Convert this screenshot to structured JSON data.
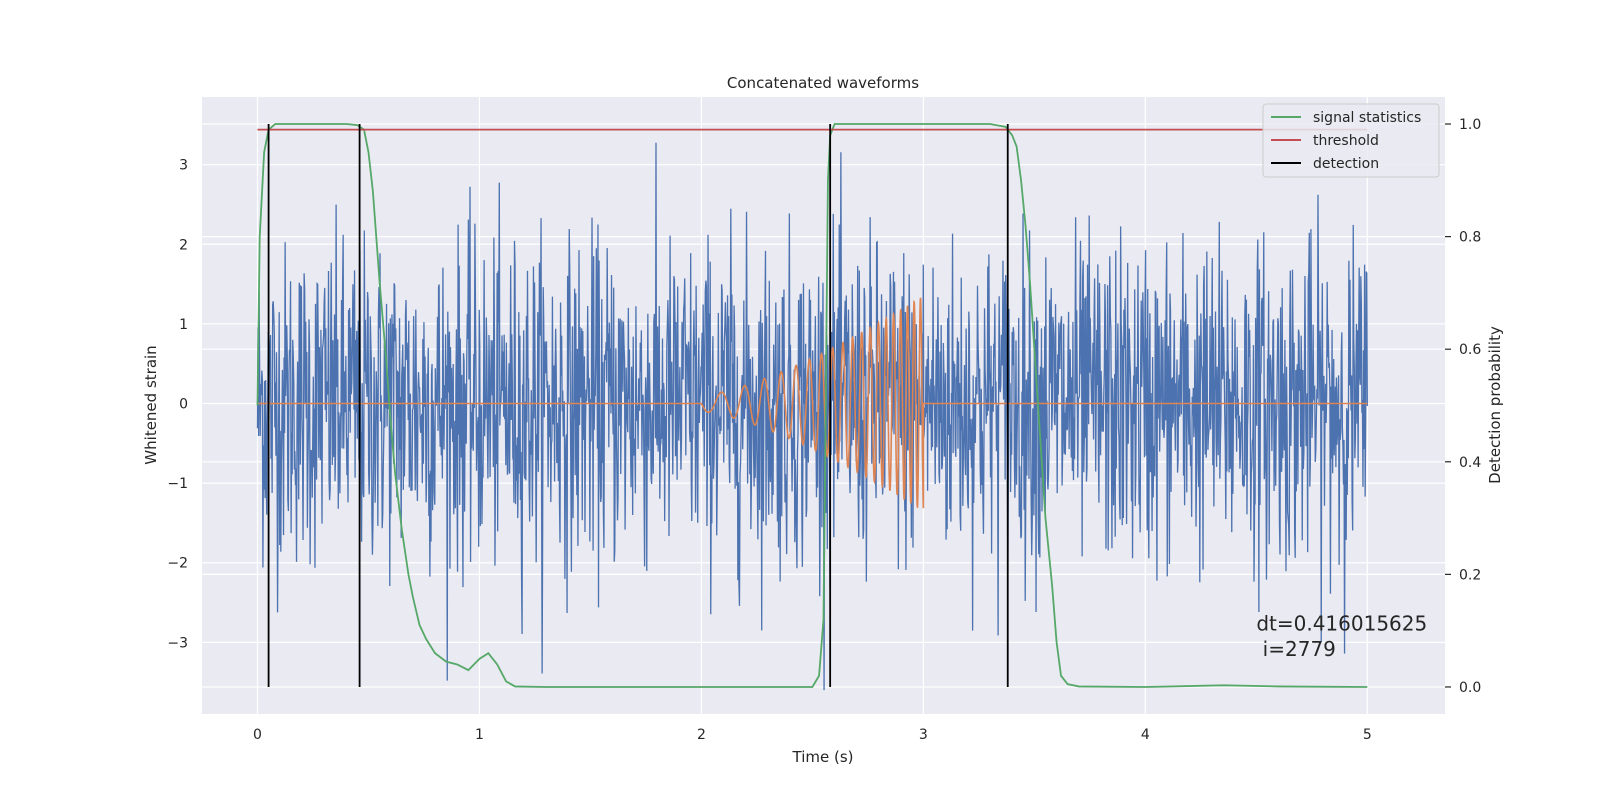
{
  "chart_data": {
    "type": "line",
    "title": "Concatenated waveforms",
    "xlabel": "Time (s)",
    "ylabel": "Whitened strain",
    "y2label": "Detection probability",
    "xlim": [
      -0.25,
      5.35
    ],
    "ylim": [
      -3.9,
      3.85
    ],
    "y2lim": [
      -0.048,
      1.048
    ],
    "xticks": [
      0,
      1,
      2,
      3,
      4,
      5
    ],
    "yticks": [
      -3,
      -2,
      -1,
      0,
      1,
      2,
      3
    ],
    "y2ticks": [
      0.0,
      0.2,
      0.4,
      0.6,
      0.8,
      1.0
    ],
    "grid": true,
    "legend_position": "top-right",
    "series": [
      {
        "name": "",
        "axis": "left",
        "color": "#4c72b0",
        "kind": "noise",
        "x_range": [
          0,
          5
        ],
        "samples": 2048,
        "std": 1.0,
        "y_range": [
          -3.6,
          3.5
        ]
      },
      {
        "name": "",
        "axis": "left",
        "color": "#dd8452",
        "kind": "chirp",
        "x_range": [
          0,
          5
        ],
        "chirp_window": [
          2.0,
          3.0
        ],
        "amplitude_start": 0.1,
        "amplitude_end": 1.35,
        "frequency_start": 8,
        "frequency_end": 36
      },
      {
        "name": "signal statistics",
        "axis": "right",
        "color": "#55a868",
        "points": [
          [
            0,
            0.5
          ],
          [
            0.01,
            0.8
          ],
          [
            0.03,
            0.95
          ],
          [
            0.05,
            0.99
          ],
          [
            0.08,
            1.0
          ],
          [
            0.2,
            1.0
          ],
          [
            0.4,
            1.0
          ],
          [
            0.45,
            0.998
          ],
          [
            0.48,
            0.99
          ],
          [
            0.5,
            0.95
          ],
          [
            0.52,
            0.88
          ],
          [
            0.55,
            0.72
          ],
          [
            0.58,
            0.58
          ],
          [
            0.6,
            0.47
          ],
          [
            0.62,
            0.38
          ],
          [
            0.65,
            0.28
          ],
          [
            0.68,
            0.2
          ],
          [
            0.7,
            0.16
          ],
          [
            0.73,
            0.11
          ],
          [
            0.76,
            0.085
          ],
          [
            0.8,
            0.06
          ],
          [
            0.85,
            0.045
          ],
          [
            0.9,
            0.04
          ],
          [
            0.95,
            0.03
          ],
          [
            1.0,
            0.05
          ],
          [
            1.04,
            0.06
          ],
          [
            1.08,
            0.04
          ],
          [
            1.12,
            0.01
          ],
          [
            1.16,
            0.001
          ],
          [
            1.3,
            0.0
          ],
          [
            1.8,
            0.0
          ],
          [
            2.4,
            0.0
          ],
          [
            2.5,
            0.0
          ],
          [
            2.53,
            0.02
          ],
          [
            2.55,
            0.12
          ],
          [
            2.56,
            0.5
          ],
          [
            2.57,
            0.9
          ],
          [
            2.58,
            0.98
          ],
          [
            2.6,
            1.0
          ],
          [
            3.0,
            1.0
          ],
          [
            3.3,
            1.0
          ],
          [
            3.37,
            0.995
          ],
          [
            3.4,
            0.98
          ],
          [
            3.42,
            0.96
          ],
          [
            3.44,
            0.9
          ],
          [
            3.46,
            0.82
          ],
          [
            3.48,
            0.72
          ],
          [
            3.5,
            0.6
          ],
          [
            3.52,
            0.48
          ],
          [
            3.55,
            0.3
          ],
          [
            3.58,
            0.18
          ],
          [
            3.6,
            0.08
          ],
          [
            3.62,
            0.02
          ],
          [
            3.65,
            0.005
          ],
          [
            3.7,
            0.001
          ],
          [
            4.0,
            0.0
          ],
          [
            4.35,
            0.003
          ],
          [
            4.6,
            0.001
          ],
          [
            5.0,
            0.0
          ]
        ]
      },
      {
        "name": "threshold",
        "axis": "right",
        "color": "#c44e52",
        "points": [
          [
            0,
            0.99
          ],
          [
            5,
            0.99
          ]
        ]
      },
      {
        "name": "detection",
        "axis": "right",
        "color": "#000000",
        "vlines": [
          0.05,
          0.46,
          2.58,
          3.38
        ],
        "vline_range": [
          0.0,
          1.0
        ]
      }
    ],
    "annotations": [
      {
        "text": "dt=0.416015625",
        "x": 4.5,
        "y": 0.1
      },
      {
        "text": " i=2779",
        "x": 4.5,
        "y": 0.055
      }
    ]
  }
}
